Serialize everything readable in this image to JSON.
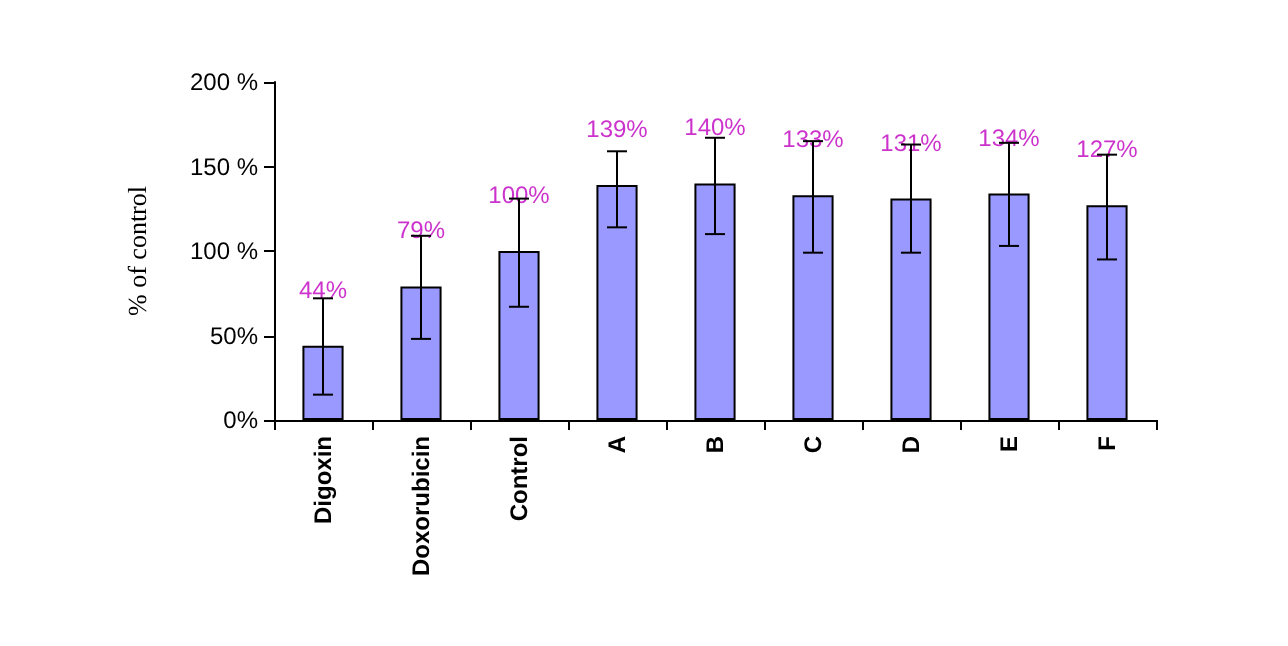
{
  "chart_data": {
    "type": "bar",
    "ylabel": "% of control",
    "categories": [
      "Digoxin",
      "Doxorubicin",
      "Control",
      "A",
      "B",
      "C",
      "D",
      "E",
      "F"
    ],
    "values": [
      44,
      79,
      100,
      139,
      140,
      133,
      131,
      134,
      127
    ],
    "value_labels": [
      "44%",
      "79%",
      "100%",
      "139%",
      "140%",
      "133%",
      "131%",
      "134%",
      "127%"
    ],
    "errors": [
      [
        15,
        72
      ],
      [
        48,
        109
      ],
      [
        67,
        131
      ],
      [
        114,
        159
      ],
      [
        110,
        167
      ],
      [
        99,
        165
      ],
      [
        99,
        163
      ],
      [
        103,
        164
      ],
      [
        95,
        157
      ]
    ],
    "color": "#9999ff",
    "ylim": [
      0,
      200
    ],
    "yticks": [
      {
        "value": 0,
        "label": "0%"
      },
      {
        "value": 50,
        "label": "50%"
      },
      {
        "value": 100,
        "label": "100 %"
      },
      {
        "value": 150,
        "label": "150 %"
      },
      {
        "value": 200,
        "label": "200 %"
      }
    ],
    "grid": false
  }
}
